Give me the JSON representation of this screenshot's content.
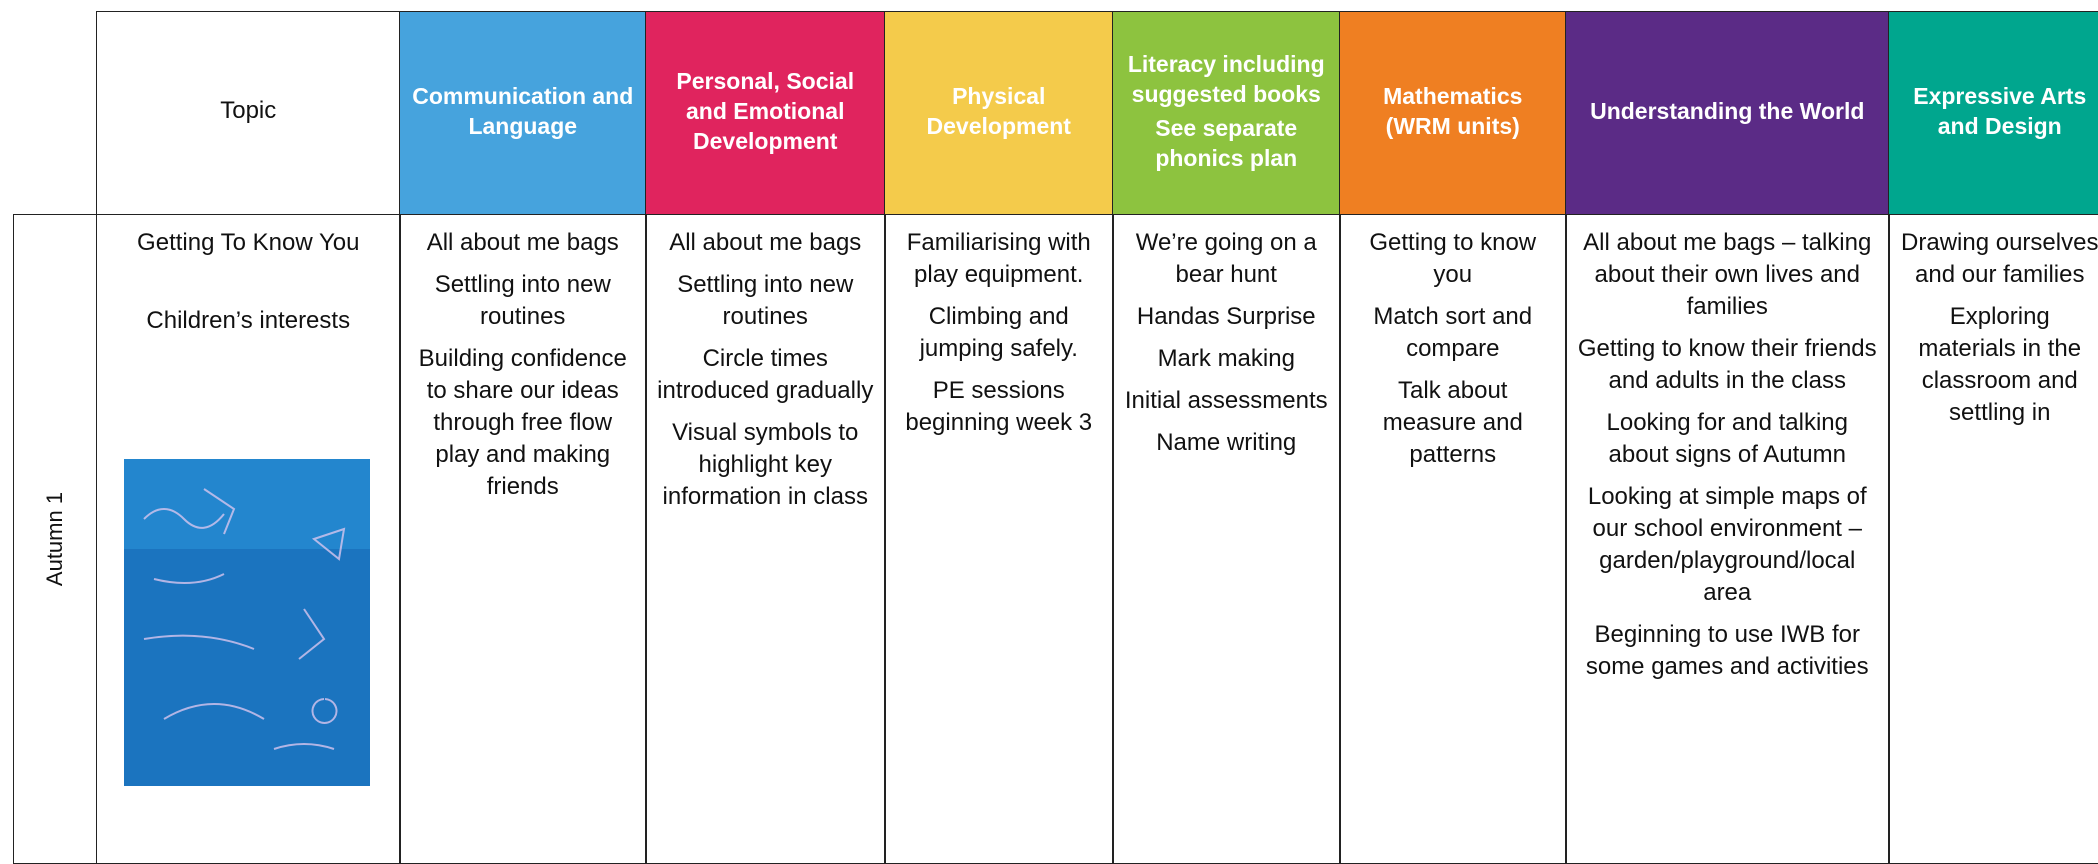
{
  "header": {
    "columns": [
      {
        "label": [
          "Topic"
        ],
        "color": "#ffffff",
        "text": "#111111"
      },
      {
        "label": [
          "Communication and Language"
        ],
        "color": "#46a3dd",
        "text": "#ffffff"
      },
      {
        "label": [
          "Personal, Social and Emotional Development"
        ],
        "color": "#e0245e",
        "text": "#ffffff"
      },
      {
        "label": [
          "Physical Development"
        ],
        "color": "#f4cb4b",
        "text": "#ffffff"
      },
      {
        "label": [
          "Literacy including suggested books",
          "See separate phonics plan"
        ],
        "color": "#8dc33f",
        "text": "#ffffff"
      },
      {
        "label": [
          "Mathematics (WRM units)"
        ],
        "color": "#ef7f22",
        "text": "#ffffff"
      },
      {
        "label": [
          "Understanding the World"
        ],
        "color": "#5b2b86",
        "text": "#ffffff"
      },
      {
        "label": [
          "Expressive Arts and Design"
        ],
        "color": "#00a68e",
        "text": "#ffffff"
      }
    ]
  },
  "rows": [
    {
      "term": "Autumn 1",
      "cells": [
        [
          "Getting To Know You",
          "Children’s interests"
        ],
        [
          "All about me bags",
          "Settling into new routines",
          "Building confidence to share our ideas through free flow play and making friends"
        ],
        [
          "All about me bags",
          "Settling into new routines",
          "Circle times introduced gradually",
          "Visual symbols to highlight key information in class"
        ],
        [
          "Familiarising with play equipment.",
          "Climbing and jumping safely.",
          "PE sessions beginning week 3"
        ],
        [
          "We’re going on a bear hunt",
          "Handas Surprise",
          "Mark making",
          "Initial assessments",
          "Name writing"
        ],
        [
          "Getting to know you",
          "Match sort and compare",
          "Talk about measure and patterns"
        ],
        [
          "All about me bags – talking about their own lives and families",
          "Getting to know their friends and adults in the class",
          "Looking for and talking about signs of Autumn",
          "Looking at simple maps of our school environment – garden/playground/local area",
          "Beginning to use IWB for some games and activities"
        ],
        [
          "Drawing ourselves and our families",
          "Exploring materials in the classroom and settling in"
        ]
      ]
    }
  ]
}
